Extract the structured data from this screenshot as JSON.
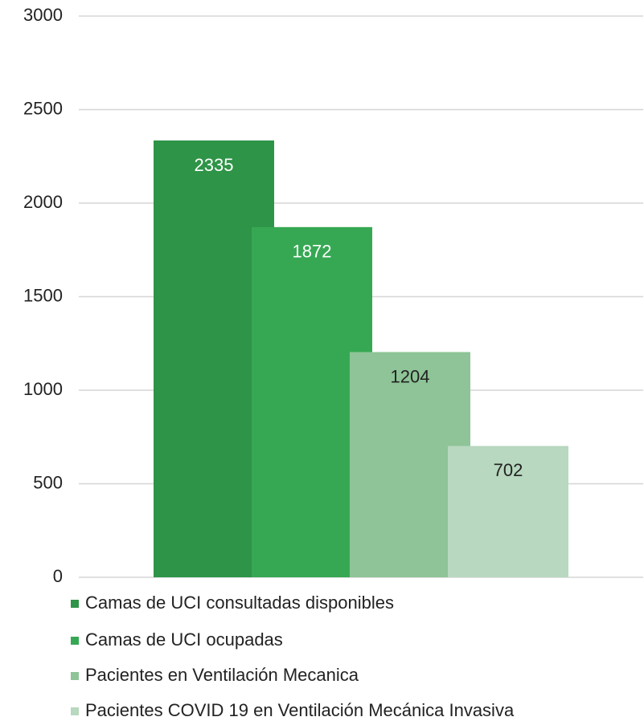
{
  "chart_data": {
    "type": "bar",
    "series": [
      {
        "name": "Camas de UCI consultadas disponibles",
        "color": "#2e9447",
        "values": [
          2335
        ]
      },
      {
        "name": "Camas de UCI ocupadas",
        "color": "#36a853",
        "values": [
          1872
        ]
      },
      {
        "name": "Pacientes en Ventilación Mecanica",
        "color": "#8ec497",
        "values": [
          1204
        ]
      },
      {
        "name": "Pacientes COVID 19 en Ventilación Mecánica Invasiva",
        "color": "#b8d8bf",
        "values": [
          702
        ]
      }
    ],
    "ylim": [
      0,
      3000
    ],
    "yticks": [
      0,
      500,
      1000,
      1500,
      2000,
      2500,
      3000
    ],
    "grid": true,
    "legend": "bottom"
  }
}
